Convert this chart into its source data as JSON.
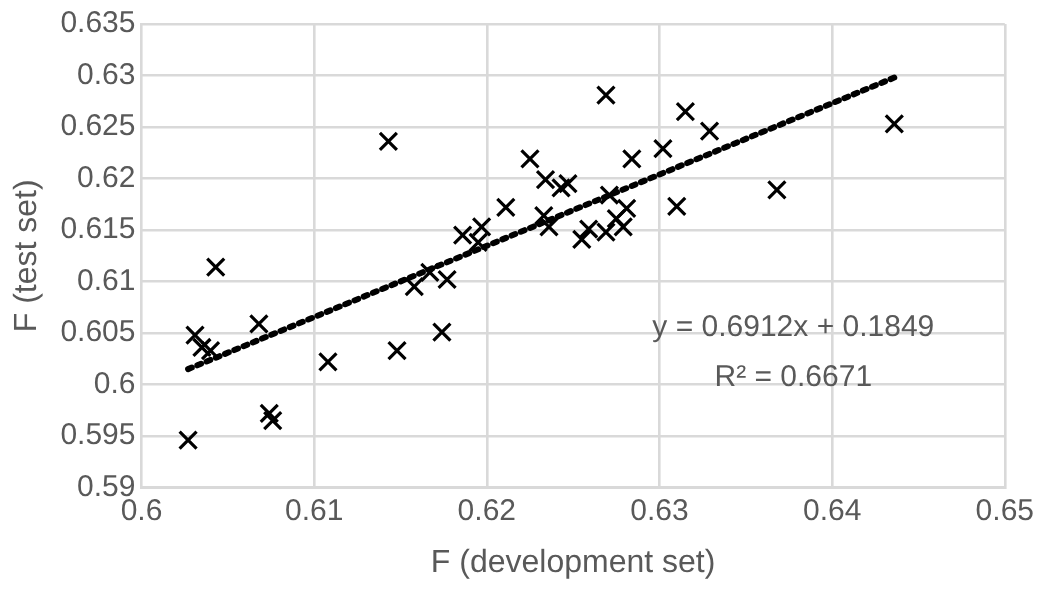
{
  "chart_data": {
    "type": "scatter",
    "xlabel": "F (development set)",
    "ylabel": "F (test set)",
    "xlim": [
      0.6,
      0.65
    ],
    "xticks": [
      {
        "value": 0.6,
        "label": "0.6"
      },
      0.61,
      0.62,
      0.63,
      0.64,
      0.65
    ],
    "ylim": [
      0.59,
      0.635
    ],
    "yticks": [
      0.59,
      0.595,
      {
        "value": 0.6,
        "label": "0.6"
      },
      0.605,
      0.61,
      0.615,
      0.62,
      0.625,
      0.63,
      0.635
    ],
    "grid": true,
    "legend": false,
    "marker": "cross",
    "annotations": [
      "y = 0.6912x + 0.1849",
      "R² = 0.6671"
    ],
    "series": [
      {
        "type": "scatter",
        "color": "#000000",
        "x": [
          0.6027,
          0.6031,
          0.6035,
          0.604,
          0.6043,
          0.6068,
          0.6074,
          0.6076,
          0.6108,
          0.6143,
          0.6148,
          0.6158,
          0.6167,
          0.6174,
          0.6177,
          0.6186,
          0.6195,
          0.6197,
          0.6211,
          0.6225,
          0.6234,
          0.6233,
          0.6236,
          0.6243,
          0.6247,
          0.6255,
          0.6259,
          0.6269,
          0.6269,
          0.6271,
          0.6275,
          0.6279,
          0.6281,
          0.6284,
          0.6302,
          0.631,
          0.6315,
          0.6329,
          0.6368,
          0.6436
        ],
        "values": [
          0.5946,
          0.6048,
          0.6036,
          0.6033,
          0.6114,
          0.6059,
          0.5972,
          0.5965,
          0.6022,
          0.6236,
          0.6033,
          0.6095,
          0.6109,
          0.6051,
          0.6102,
          0.6145,
          0.6138,
          0.6153,
          0.6172,
          0.6219,
          0.6199,
          0.6164,
          0.6153,
          0.6191,
          0.6195,
          0.6141,
          0.6151,
          0.6148,
          0.6281,
          0.6184,
          0.6161,
          0.6153,
          0.6171,
          0.6219,
          0.6229,
          0.6173,
          0.6265,
          0.6246,
          0.6189,
          0.6253
        ]
      },
      {
        "type": "line",
        "color": "#000000",
        "line_style": "dotted",
        "marker": "none",
        "x": [
          0.6027,
          0.6436
        ],
        "values": [
          0.6015,
          0.6298
        ]
      }
    ]
  }
}
